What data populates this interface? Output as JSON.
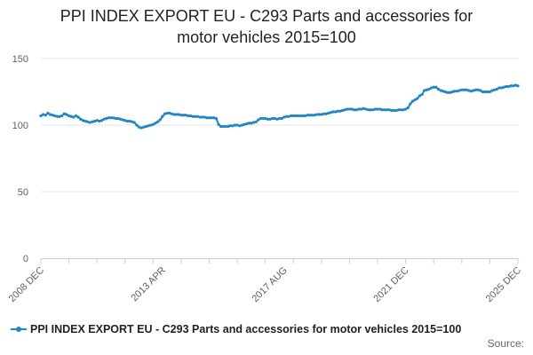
{
  "chart_data": {
    "type": "line",
    "title_line1": "PPI INDEX EXPORT EU - C293 Parts and accessories for",
    "title_line2": "motor vehicles 2015=100",
    "x_tick_labels": [
      "2008 DEC",
      "2013 APR",
      "2017 AUG",
      "2021 DEC",
      "2025 DEC"
    ],
    "x_tick_index": [
      0,
      52,
      104,
      156,
      204
    ],
    "y_ticks": [
      0,
      50,
      100,
      150
    ],
    "ylim": [
      0,
      150
    ],
    "grid": true,
    "legend_position": "bottom",
    "source_label": "Source:",
    "series": [
      {
        "name": "PPI INDEX EXPORT EU - C293 Parts and accessories for motor vehicles 2015=100",
        "color": "#1f86c3",
        "start": "2008-12",
        "frequency": "monthly",
        "values": [
          107,
          108,
          107.5,
          109,
          108,
          107.5,
          107,
          106.5,
          106.5,
          107,
          108.5,
          108,
          107,
          106.5,
          106,
          107,
          106,
          104.5,
          103.5,
          103,
          102.5,
          102,
          102.5,
          103,
          103.5,
          103,
          103.5,
          104.5,
          105,
          105.5,
          105.5,
          105.5,
          105,
          105,
          104.5,
          104,
          103.5,
          103,
          103,
          102.5,
          102,
          100,
          98.5,
          98,
          98.5,
          99,
          99.5,
          100,
          100.5,
          101.5,
          102.5,
          104,
          106.5,
          108.5,
          109,
          109,
          108.5,
          108,
          108,
          108,
          107.5,
          107.5,
          107.5,
          107,
          107,
          106.5,
          106.5,
          106.5,
          106,
          106,
          106,
          105.5,
          105.5,
          105.5,
          105.5,
          105,
          100.5,
          99,
          99,
          99,
          99,
          99.5,
          99.5,
          100,
          100,
          99.5,
          100,
          100.5,
          101,
          101.5,
          101.5,
          102,
          102.5,
          104,
          105,
          105,
          105,
          104.5,
          104.5,
          105,
          105,
          104.5,
          105,
          105,
          106,
          106.5,
          106.5,
          107,
          107,
          107,
          107,
          107,
          107,
          107,
          107.5,
          107.5,
          107.5,
          107.5,
          108,
          108,
          108,
          108.5,
          108.5,
          109,
          109.5,
          110,
          110,
          110.5,
          110.5,
          111,
          111.5,
          112,
          112,
          112,
          111.5,
          111.5,
          112,
          112,
          112.5,
          112,
          111.5,
          111.5,
          111.5,
          112,
          112,
          112,
          111.5,
          111.5,
          111.5,
          111.5,
          111,
          111,
          111,
          111.5,
          111.5,
          111.5,
          112,
          113,
          116,
          118,
          119,
          120,
          122,
          123,
          126,
          126.5,
          127,
          128,
          128.5,
          128.5,
          127,
          126,
          125.5,
          125,
          124.5,
          124.5,
          125,
          125.5,
          125.5,
          126,
          126.5,
          126.5,
          126.5,
          126,
          125.5,
          126,
          126.5,
          126.5,
          126,
          125,
          125,
          125,
          125,
          126,
          126.5,
          127,
          128,
          128,
          128.5,
          129,
          129,
          129.5,
          129.5,
          130,
          129.5
        ]
      }
    ]
  }
}
